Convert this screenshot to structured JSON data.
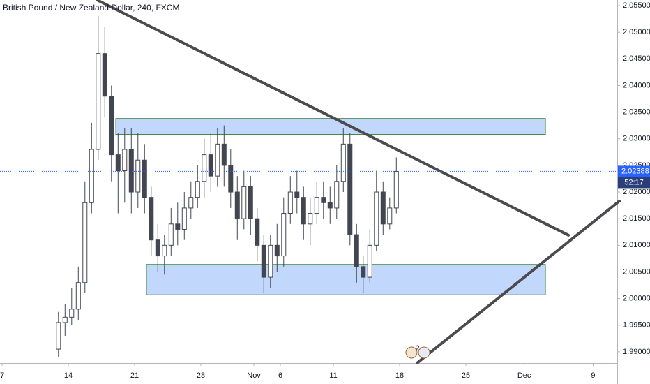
{
  "chart_data": {
    "type": "candlestick",
    "title": "British Pound / New Zealand Dollar, 240, FXCM",
    "xlim": [
      -0.16,
      46.42
    ],
    "ylim": [
      1.98789,
      2.05605
    ],
    "xticks": [
      {
        "value": 0,
        "label": "7"
      },
      {
        "value": 5,
        "label": "14"
      },
      {
        "value": 10,
        "label": "21"
      },
      {
        "value": 15,
        "label": "28"
      },
      {
        "value": 19,
        "label": "Nov"
      },
      {
        "value": 21,
        "label": "6"
      },
      {
        "value": 25,
        "label": "11"
      },
      {
        "value": 30,
        "label": "18"
      },
      {
        "value": 35,
        "label": "25"
      },
      {
        "value": 39.4,
        "label": "Dec"
      },
      {
        "value": 44.6,
        "label": "9"
      }
    ],
    "yticks": [
      {
        "value": 2.055,
        "label": "2.05500"
      },
      {
        "value": 2.05,
        "label": "2.05000"
      },
      {
        "value": 2.045,
        "label": "2.04500"
      },
      {
        "value": 2.04,
        "label": "2.04000"
      },
      {
        "value": 2.035,
        "label": "2.03500"
      },
      {
        "value": 2.03,
        "label": "2.03000"
      },
      {
        "value": 2.025,
        "label": "2.02500"
      },
      {
        "value": 2.02,
        "label": "2.02000"
      },
      {
        "value": 2.015,
        "label": "2.01500"
      },
      {
        "value": 2.01,
        "label": "2.01000"
      },
      {
        "value": 2.005,
        "label": "2.00500"
      },
      {
        "value": 2.0,
        "label": "2.00000"
      },
      {
        "value": 1.995,
        "label": "1.99500"
      },
      {
        "value": 1.99,
        "label": "1.99000"
      }
    ],
    "up_color": "#ffffff",
    "down_color": "#434651",
    "candles": {
      "x": [
        4.25,
        4.75,
        5.25,
        5.75,
        6.25,
        6.75,
        7.25,
        7.75,
        8.25,
        8.75,
        9.25,
        9.75,
        10.25,
        10.75,
        11.25,
        11.75,
        12.25,
        12.75,
        13.25,
        13.75,
        14.25,
        14.75,
        15.25,
        15.75,
        16.25,
        16.75,
        17.25,
        17.75,
        18.25,
        18.75,
        19.25,
        19.75,
        20.25,
        20.75,
        21.25,
        21.75,
        22.25,
        22.75,
        23.25,
        23.75,
        24.25,
        24.75,
        25.25,
        25.75,
        26.25,
        26.75,
        27.25,
        27.75,
        28.25,
        28.75,
        29.25,
        29.75
      ],
      "open": [
        1.9905,
        1.9955,
        1.9965,
        1.998,
        2.003,
        2.018,
        2.028,
        2.046,
        2.038,
        2.027,
        2.024,
        2.028,
        2.02,
        2.026,
        2.019,
        2.011,
        2.008,
        2.01,
        2.014,
        2.013,
        2.017,
        2.019,
        2.022,
        2.027,
        2.023,
        2.029,
        2.025,
        2.02,
        2.015,
        2.021,
        2.015,
        2.01,
        2.004,
        2.01,
        2.008,
        2.016,
        2.02,
        2.019,
        2.014,
        2.016,
        2.019,
        2.018,
        2.017,
        2.022,
        2.029,
        2.012,
        2.006,
        2.004,
        2.01,
        2.02,
        2.014,
        2.017
      ],
      "high": [
        1.9975,
        1.999,
        2.002,
        2.006,
        2.022,
        2.033,
        2.053,
        2.051,
        2.04,
        2.031,
        2.032,
        2.032,
        2.031,
        2.029,
        2.021,
        2.014,
        2.012,
        2.017,
        2.018,
        2.02,
        2.022,
        2.025,
        2.03,
        2.031,
        2.032,
        2.0325,
        2.028,
        2.023,
        2.024,
        2.023,
        2.017,
        2.012,
        2.012,
        2.014,
        2.019,
        2.023,
        2.024,
        2.021,
        2.019,
        2.022,
        2.022,
        2.021,
        2.025,
        2.032,
        2.031,
        2.014,
        2.008,
        2.013,
        2.024,
        2.022,
        2.019,
        2.0265
      ],
      "low": [
        1.989,
        1.993,
        1.995,
        1.996,
        2.001,
        2.016,
        2.026,
        2.034,
        2.022,
        2.016,
        2.018,
        2.016,
        2.017,
        2.016,
        2.008,
        2.005,
        2.0045,
        2.008,
        2.01,
        2.011,
        2.015,
        2.017,
        2.019,
        2.02,
        2.021,
        2.021,
        2.017,
        2.011,
        2.013,
        2.012,
        2.007,
        2.001,
        2.002,
        2.005,
        2.006,
        2.014,
        2.016,
        2.011,
        2.01,
        2.014,
        2.015,
        2.014,
        2.015,
        2.02,
        2.01,
        2.003,
        2.001,
        2.003,
        2.009,
        2.012,
        2.013,
        2.016
      ],
      "close": [
        1.9955,
        1.9965,
        1.998,
        2.003,
        2.018,
        2.028,
        2.046,
        2.038,
        2.027,
        2.024,
        2.028,
        2.02,
        2.026,
        2.019,
        2.011,
        2.008,
        2.01,
        2.014,
        2.013,
        2.017,
        2.019,
        2.022,
        2.027,
        2.023,
        2.029,
        2.025,
        2.02,
        2.015,
        2.021,
        2.015,
        2.01,
        2.004,
        2.01,
        2.008,
        2.016,
        2.02,
        2.019,
        2.014,
        2.016,
        2.019,
        2.018,
        2.017,
        2.022,
        2.029,
        2.012,
        2.006,
        2.004,
        2.01,
        2.02,
        2.014,
        2.017,
        2.02388
      ]
    },
    "last_price": 2.02388,
    "countdown": "52:17",
    "event_badge": "2",
    "zones": [
      {
        "x": [
          8.58,
          41.0
        ],
        "price": [
          2.0338,
          2.0308
        ]
      },
      {
        "x": [
          10.89,
          41.0
        ],
        "price": [
          2.0064,
          2.0007
        ]
      }
    ],
    "trendlines": [
      {
        "x": [
          7.21,
          42.74
        ],
        "price": [
          2.056,
          2.0119
        ]
      },
      {
        "x": [
          31.32,
          46.58
        ],
        "price": [
          1.9879,
          2.0183
        ]
      }
    ]
  }
}
